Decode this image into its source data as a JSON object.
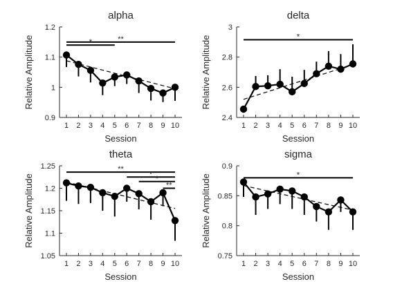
{
  "chart_data": [
    {
      "type": "line",
      "title": "alpha",
      "xlabel": "Session",
      "ylabel": "Relative Amplitude",
      "x": [
        1,
        2,
        3,
        4,
        5,
        6,
        7,
        8,
        9,
        10
      ],
      "xticks": [
        "1",
        "2",
        "3",
        "4",
        "5",
        "6",
        "7",
        "8",
        "9",
        "10"
      ],
      "ylim": [
        0.9,
        1.2
      ],
      "yticks": [
        "0.9",
        "1",
        "1.1",
        "1.2"
      ],
      "yticks_values": [
        0.9,
        1.0,
        1.1,
        1.2
      ],
      "values": [
        1.107,
        1.076,
        1.056,
        1.014,
        1.034,
        1.041,
        1.021,
        0.996,
        0.981,
        1.0
      ],
      "errors_lower": [
        0.04,
        0.04,
        0.04,
        0.04,
        0.03,
        0.03,
        0.04,
        0.04,
        0.03,
        0.045
      ],
      "trend": [
        1.088,
        0.995
      ],
      "significance": [
        {
          "from": 1,
          "to": 5,
          "label": "*",
          "y": 1.14
        },
        {
          "from": 1,
          "to": 10,
          "label": "**",
          "y": 1.15
        }
      ]
    },
    {
      "type": "line",
      "title": "delta",
      "xlabel": "Session",
      "ylabel": "Relative Amplitude",
      "x": [
        1,
        2,
        3,
        4,
        5,
        6,
        7,
        8,
        9,
        10
      ],
      "xticks": [
        "1",
        "2",
        "3",
        "4",
        "5",
        "6",
        "7",
        "8",
        "9",
        "10"
      ],
      "ylim": [
        2.4,
        3.0
      ],
      "yticks": [
        "2.4",
        "2.6",
        "2.8",
        "3"
      ],
      "yticks_values": [
        2.4,
        2.6,
        2.8,
        3.0
      ],
      "values": [
        2.455,
        2.605,
        2.61,
        2.62,
        2.57,
        2.625,
        2.69,
        2.74,
        2.72,
        2.755
      ],
      "errors_upper": [
        0.0,
        0.07,
        0.07,
        0.1,
        0.1,
        0.09,
        0.08,
        0.1,
        0.1,
        0.13
      ],
      "trend": [
        2.52,
        2.75
      ],
      "significance": [
        {
          "from": 1,
          "to": 10,
          "label": "*",
          "y": 2.915
        }
      ]
    },
    {
      "type": "line",
      "title": "theta",
      "xlabel": "Session",
      "ylabel": "Relative Amplitude",
      "x": [
        1,
        2,
        3,
        4,
        5,
        6,
        7,
        8,
        9,
        10
      ],
      "xticks": [
        "1",
        "2",
        "3",
        "4",
        "5",
        "6",
        "7",
        "8",
        "9",
        "10"
      ],
      "ylim": [
        1.05,
        1.25
      ],
      "yticks": [
        "1.05",
        "1.1",
        "1.15",
        "1.2",
        "1.25"
      ],
      "yticks_values": [
        1.05,
        1.1,
        1.15,
        1.2,
        1.25
      ],
      "values": [
        1.212,
        1.205,
        1.202,
        1.19,
        1.182,
        1.2,
        1.188,
        1.17,
        1.19,
        1.128
      ],
      "errors_lower": [
        0.04,
        0.04,
        0.035,
        0.04,
        0.045,
        0.03,
        0.035,
        0.04,
        0.03,
        0.045
      ],
      "trend": [
        1.214,
        1.155
      ],
      "significance": [
        {
          "from": 1,
          "to": 10,
          "label": "**",
          "y": 1.236
        },
        {
          "from": 6,
          "to": 10,
          "label": "*",
          "y": 1.225
        },
        {
          "from": 7,
          "to": 10,
          "label": "*",
          "y": 1.215
        },
        {
          "from": 9,
          "to": 10,
          "label": "**",
          "y": 1.2
        }
      ]
    },
    {
      "type": "line",
      "title": "sigma",
      "xlabel": "Session",
      "ylabel": "Relative Amplitude",
      "x": [
        1,
        2,
        3,
        4,
        5,
        6,
        7,
        8,
        9,
        10
      ],
      "xticks": [
        "1",
        "2",
        "3",
        "4",
        "5",
        "6",
        "7",
        "8",
        "9",
        "10"
      ],
      "ylim": [
        0.75,
        0.9
      ],
      "yticks": [
        "0.75",
        "0.8",
        "0.85",
        "0.9"
      ],
      "yticks_values": [
        0.75,
        0.8,
        0.85,
        0.9
      ],
      "values": [
        0.873,
        0.848,
        0.853,
        0.861,
        0.858,
        0.848,
        0.832,
        0.823,
        0.843,
        0.823
      ],
      "errors_lower": [
        0.025,
        0.03,
        0.025,
        0.025,
        0.03,
        0.03,
        0.025,
        0.03,
        0.02,
        0.03
      ],
      "trend": [
        0.867,
        0.826
      ],
      "significance": [
        {
          "from": 1,
          "to": 10,
          "label": "*",
          "y": 0.88
        }
      ]
    }
  ]
}
